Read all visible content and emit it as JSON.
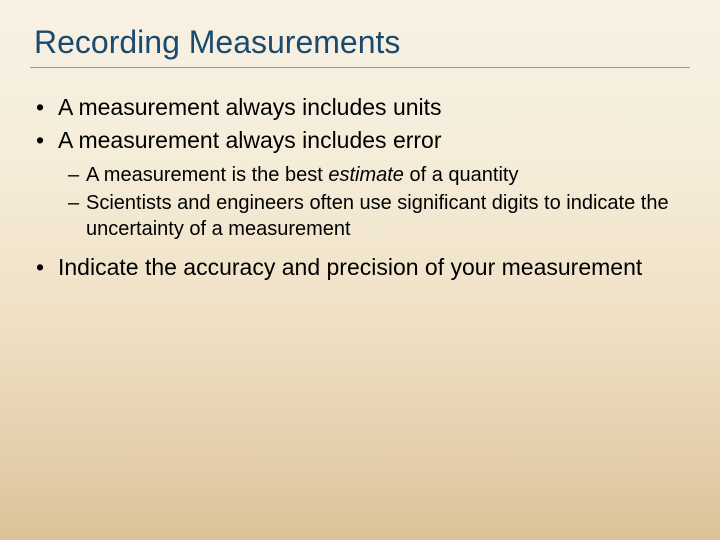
{
  "colors": {
    "title_color": "#1a4b6e",
    "text_color": "#000000",
    "underline_color": "#9a9a8a",
    "bg_gradient": [
      "#f8f2e4",
      "#f5ecd9",
      "#efe0c4",
      "#e4ceab",
      "#dcc297"
    ]
  },
  "typography": {
    "title_fontsize": 32,
    "l1_fontsize": 23,
    "l2_fontsize": 20,
    "font_family": "Arial"
  },
  "title": "Recording Measurements",
  "bullets": {
    "b1": "A measurement always includes units",
    "b2": "A measurement always includes error",
    "b2_sub": {
      "s1_pre": "A measurement is the best ",
      "s1_em": "estimate",
      "s1_post": " of a quantity",
      "s2": "Scientists and engineers often use significant digits to indicate the uncertainty of a measurement"
    },
    "b3": "Indicate the accuracy and precision of your measurement"
  }
}
